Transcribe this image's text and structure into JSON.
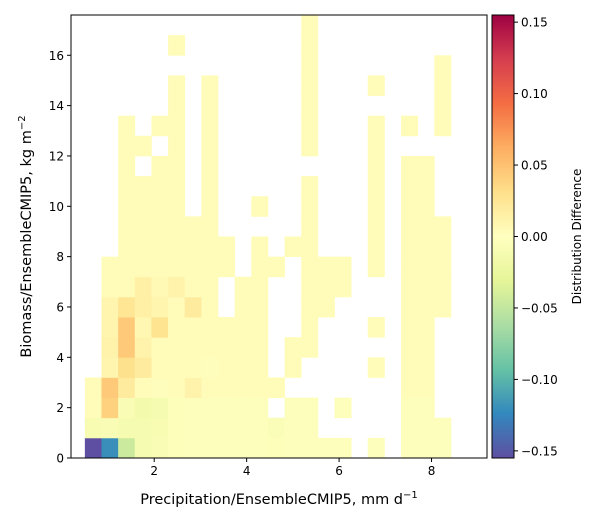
{
  "chart_data": {
    "type": "heatmap",
    "title": "",
    "xlabel": "Precipitation/EnsembleCMIP5,  mm d",
    "xlabel_sup": "−1",
    "ylabel": "Biomass/EnsembleCMIP5,  kg m",
    "ylabel_sup": "−2",
    "xlim": [
      0.2,
      9.2
    ],
    "ylim": [
      0,
      17.6
    ],
    "x_ticks": [
      2,
      4,
      6,
      8
    ],
    "y_ticks": [
      0,
      2,
      4,
      6,
      8,
      10,
      12,
      14,
      16
    ],
    "x_bin_width": 0.36,
    "y_bin_width": 0.8,
    "grid": false,
    "colorbar": {
      "label": "Distribution Difference",
      "range": [
        -0.155,
        0.155
      ],
      "ticks": [
        -0.15,
        -0.1,
        -0.05,
        0.0,
        0.05,
        0.1,
        0.15
      ],
      "tick_labels": [
        "−0.15",
        "−0.10",
        "−0.05",
        "0.00",
        "0.05",
        "0.10",
        "0.15"
      ],
      "colormap": "Spectral_r"
    },
    "cells_note": "each cell: [x_bin_start, y_bin_start, value]",
    "cells": [
      [
        0.5,
        0.0,
        -0.155
      ],
      [
        0.86,
        0.0,
        -0.12
      ],
      [
        1.22,
        0.0,
        -0.045
      ],
      [
        1.58,
        0.0,
        -0.012
      ],
      [
        1.94,
        0.0,
        -0.008
      ],
      [
        2.3,
        0.0,
        -0.004
      ],
      [
        2.66,
        0.0,
        -0.003
      ],
      [
        3.02,
        0.0,
        -0.003
      ],
      [
        3.38,
        0.0,
        -0.003
      ],
      [
        3.74,
        0.0,
        -0.003
      ],
      [
        4.1,
        0.0,
        -0.003
      ],
      [
        4.46,
        0.0,
        -0.004
      ],
      [
        4.82,
        0.0,
        -0.003
      ],
      [
        5.18,
        0.0,
        -0.003
      ],
      [
        5.54,
        0.0,
        -0.003
      ],
      [
        5.9,
        0.0,
        -0.003
      ],
      [
        6.62,
        0.0,
        -0.003
      ],
      [
        7.34,
        0.0,
        -0.003
      ],
      [
        7.7,
        0.0,
        -0.003
      ],
      [
        8.06,
        0.0,
        -0.003
      ],
      [
        0.5,
        0.8,
        -0.01
      ],
      [
        0.86,
        0.8,
        -0.008
      ],
      [
        1.22,
        0.8,
        -0.012
      ],
      [
        1.58,
        0.8,
        -0.012
      ],
      [
        1.94,
        0.8,
        -0.01
      ],
      [
        2.3,
        0.8,
        -0.004
      ],
      [
        2.66,
        0.8,
        -0.003
      ],
      [
        3.02,
        0.8,
        -0.003
      ],
      [
        3.38,
        0.8,
        -0.003
      ],
      [
        3.74,
        0.8,
        -0.003
      ],
      [
        4.1,
        0.8,
        -0.003
      ],
      [
        4.46,
        0.8,
        -0.006
      ],
      [
        4.82,
        0.8,
        -0.003
      ],
      [
        5.18,
        0.8,
        -0.003
      ],
      [
        7.34,
        0.8,
        -0.003
      ],
      [
        7.7,
        0.8,
        -0.003
      ],
      [
        8.06,
        0.8,
        -0.003
      ],
      [
        0.5,
        1.6,
        0.004
      ],
      [
        0.86,
        1.6,
        0.04
      ],
      [
        1.22,
        1.6,
        -0.008
      ],
      [
        1.58,
        1.6,
        -0.015
      ],
      [
        1.94,
        1.6,
        -0.012
      ],
      [
        2.3,
        1.6,
        -0.004
      ],
      [
        2.66,
        1.6,
        -0.003
      ],
      [
        3.02,
        1.6,
        -0.003
      ],
      [
        3.38,
        1.6,
        -0.003
      ],
      [
        3.74,
        1.6,
        -0.003
      ],
      [
        4.1,
        1.6,
        -0.003
      ],
      [
        4.82,
        1.6,
        -0.003
      ],
      [
        5.18,
        1.6,
        -0.003
      ],
      [
        5.9,
        1.6,
        -0.003
      ],
      [
        7.34,
        1.6,
        -0.003
      ],
      [
        7.7,
        1.6,
        -0.003
      ],
      [
        0.5,
        2.4,
        0.004
      ],
      [
        0.86,
        2.4,
        0.045
      ],
      [
        1.22,
        2.4,
        0.02
      ],
      [
        1.58,
        2.4,
        0.003
      ],
      [
        1.94,
        2.4,
        0.002
      ],
      [
        2.3,
        2.4,
        0.003
      ],
      [
        2.66,
        2.4,
        0.012
      ],
      [
        3.02,
        2.4,
        0.003
      ],
      [
        3.38,
        2.4,
        0.003
      ],
      [
        3.74,
        2.4,
        0.003
      ],
      [
        4.1,
        2.4,
        0.003
      ],
      [
        4.46,
        2.4,
        0.003
      ],
      [
        7.34,
        2.4,
        0.003
      ],
      [
        7.7,
        2.4,
        0.003
      ],
      [
        0.86,
        3.2,
        0.01
      ],
      [
        1.22,
        3.2,
        0.03
      ],
      [
        1.58,
        3.2,
        0.02
      ],
      [
        1.94,
        3.2,
        0.003
      ],
      [
        2.3,
        3.2,
        0.003
      ],
      [
        2.66,
        3.2,
        0.003
      ],
      [
        3.02,
        3.2,
        0.002
      ],
      [
        3.38,
        3.2,
        0.003
      ],
      [
        3.74,
        3.2,
        0.003
      ],
      [
        4.1,
        3.2,
        0.003
      ],
      [
        4.82,
        3.2,
        0.003
      ],
      [
        6.62,
        3.2,
        0.003
      ],
      [
        7.34,
        3.2,
        0.003
      ],
      [
        7.7,
        3.2,
        0.003
      ],
      [
        0.86,
        4.0,
        0.012
      ],
      [
        1.22,
        4.0,
        0.045
      ],
      [
        1.58,
        4.0,
        0.012
      ],
      [
        1.94,
        4.0,
        0.003
      ],
      [
        2.3,
        4.0,
        0.003
      ],
      [
        2.66,
        4.0,
        0.003
      ],
      [
        3.02,
        4.0,
        0.003
      ],
      [
        3.38,
        4.0,
        0.003
      ],
      [
        3.74,
        4.0,
        0.003
      ],
      [
        4.1,
        4.0,
        0.003
      ],
      [
        4.82,
        4.0,
        0.003
      ],
      [
        5.18,
        4.0,
        0.003
      ],
      [
        7.34,
        4.0,
        0.003
      ],
      [
        7.7,
        4.0,
        0.003
      ],
      [
        0.86,
        4.8,
        0.01
      ],
      [
        1.22,
        4.8,
        0.045
      ],
      [
        1.58,
        4.8,
        0.008
      ],
      [
        1.94,
        4.8,
        0.028
      ],
      [
        2.3,
        4.8,
        0.003
      ],
      [
        2.66,
        4.8,
        0.003
      ],
      [
        3.02,
        4.8,
        0.003
      ],
      [
        3.38,
        4.8,
        0.003
      ],
      [
        3.74,
        4.8,
        0.003
      ],
      [
        4.1,
        4.8,
        0.003
      ],
      [
        5.18,
        4.8,
        0.003
      ],
      [
        6.62,
        4.8,
        0.003
      ],
      [
        7.34,
        4.8,
        0.003
      ],
      [
        7.7,
        4.8,
        0.003
      ],
      [
        0.86,
        5.6,
        0.01
      ],
      [
        1.22,
        5.6,
        0.025
      ],
      [
        1.58,
        5.6,
        0.015
      ],
      [
        1.94,
        5.6,
        0.01
      ],
      [
        2.3,
        5.6,
        0.004
      ],
      [
        2.66,
        5.6,
        0.02
      ],
      [
        3.02,
        5.6,
        0.003
      ],
      [
        3.74,
        5.6,
        0.003
      ],
      [
        4.1,
        5.6,
        0.003
      ],
      [
        5.18,
        5.6,
        0.003
      ],
      [
        5.54,
        5.6,
        0.003
      ],
      [
        7.34,
        5.6,
        0.003
      ],
      [
        7.7,
        5.6,
        0.003
      ],
      [
        8.06,
        5.6,
        0.003
      ],
      [
        0.86,
        6.4,
        0.003
      ],
      [
        1.22,
        6.4,
        0.004
      ],
      [
        1.58,
        6.4,
        0.015
      ],
      [
        1.94,
        6.4,
        0.006
      ],
      [
        2.3,
        6.4,
        0.012
      ],
      [
        2.66,
        6.4,
        0.004
      ],
      [
        3.02,
        6.4,
        0.003
      ],
      [
        3.74,
        6.4,
        0.003
      ],
      [
        4.1,
        6.4,
        0.003
      ],
      [
        5.18,
        6.4,
        0.003
      ],
      [
        5.54,
        6.4,
        0.003
      ],
      [
        5.9,
        6.4,
        0.003
      ],
      [
        7.34,
        6.4,
        0.003
      ],
      [
        7.7,
        6.4,
        0.003
      ],
      [
        8.06,
        6.4,
        0.003
      ],
      [
        0.86,
        7.2,
        0.003
      ],
      [
        1.22,
        7.2,
        0.003
      ],
      [
        1.58,
        7.2,
        0.003
      ],
      [
        1.94,
        7.2,
        0.003
      ],
      [
        2.3,
        7.2,
        0.003
      ],
      [
        2.66,
        7.2,
        0.003
      ],
      [
        3.02,
        7.2,
        0.003
      ],
      [
        3.38,
        7.2,
        0.003
      ],
      [
        4.1,
        7.2,
        0.003
      ],
      [
        4.46,
        7.2,
        0.003
      ],
      [
        5.18,
        7.2,
        0.003
      ],
      [
        5.54,
        7.2,
        0.003
      ],
      [
        5.9,
        7.2,
        0.003
      ],
      [
        6.62,
        7.2,
        0.003
      ],
      [
        7.34,
        7.2,
        0.003
      ],
      [
        7.7,
        7.2,
        0.003
      ],
      [
        8.06,
        7.2,
        0.003
      ],
      [
        1.22,
        8.0,
        0.003
      ],
      [
        1.58,
        8.0,
        0.003
      ],
      [
        1.94,
        8.0,
        0.003
      ],
      [
        2.3,
        8.0,
        0.003
      ],
      [
        2.66,
        8.0,
        0.003
      ],
      [
        3.02,
        8.0,
        0.003
      ],
      [
        3.38,
        8.0,
        0.003
      ],
      [
        4.1,
        8.0,
        0.003
      ],
      [
        4.82,
        8.0,
        0.003
      ],
      [
        5.18,
        8.0,
        0.003
      ],
      [
        6.62,
        8.0,
        0.003
      ],
      [
        7.34,
        8.0,
        0.003
      ],
      [
        7.7,
        8.0,
        0.003
      ],
      [
        8.06,
        8.0,
        0.003
      ],
      [
        1.22,
        8.8,
        0.003
      ],
      [
        1.58,
        8.8,
        0.003
      ],
      [
        1.94,
        8.8,
        0.003
      ],
      [
        2.3,
        8.8,
        0.003
      ],
      [
        2.66,
        8.8,
        0.003
      ],
      [
        3.02,
        8.8,
        0.003
      ],
      [
        5.18,
        8.8,
        0.003
      ],
      [
        6.62,
        8.8,
        0.003
      ],
      [
        7.34,
        8.8,
        0.003
      ],
      [
        7.7,
        8.8,
        0.003
      ],
      [
        8.06,
        8.8,
        0.003
      ],
      [
        1.22,
        9.6,
        0.003
      ],
      [
        1.58,
        9.6,
        0.003
      ],
      [
        1.94,
        9.6,
        0.003
      ],
      [
        2.3,
        9.6,
        0.003
      ],
      [
        3.02,
        9.6,
        0.003
      ],
      [
        4.1,
        9.6,
        0.003
      ],
      [
        5.18,
        9.6,
        0.003
      ],
      [
        6.62,
        9.6,
        0.003
      ],
      [
        7.34,
        9.6,
        0.003
      ],
      [
        7.7,
        9.6,
        0.003
      ],
      [
        1.22,
        10.4,
        0.003
      ],
      [
        1.58,
        10.4,
        0.003
      ],
      [
        1.94,
        10.4,
        0.003
      ],
      [
        2.3,
        10.4,
        0.003
      ],
      [
        3.02,
        10.4,
        0.003
      ],
      [
        5.18,
        10.4,
        0.003
      ],
      [
        6.62,
        10.4,
        0.003
      ],
      [
        7.34,
        10.4,
        0.003
      ],
      [
        7.7,
        10.4,
        0.003
      ],
      [
        1.22,
        11.2,
        0.003
      ],
      [
        1.94,
        11.2,
        0.003
      ],
      [
        2.3,
        11.2,
        0.003
      ],
      [
        3.02,
        11.2,
        0.003
      ],
      [
        6.62,
        11.2,
        0.003
      ],
      [
        7.34,
        11.2,
        0.003
      ],
      [
        7.7,
        11.2,
        0.003
      ],
      [
        1.22,
        12.0,
        0.003
      ],
      [
        1.58,
        12.0,
        0.003
      ],
      [
        2.3,
        12.0,
        0.003
      ],
      [
        3.02,
        12.0,
        0.003
      ],
      [
        5.18,
        12.0,
        0.003
      ],
      [
        6.62,
        12.0,
        0.003
      ],
      [
        1.22,
        12.8,
        0.003
      ],
      [
        1.94,
        12.8,
        0.003
      ],
      [
        2.3,
        12.8,
        0.003
      ],
      [
        3.02,
        12.8,
        0.003
      ],
      [
        5.18,
        12.8,
        0.003
      ],
      [
        6.62,
        12.8,
        0.003
      ],
      [
        7.34,
        12.8,
        0.003
      ],
      [
        8.06,
        12.8,
        0.003
      ],
      [
        2.3,
        13.6,
        0.003
      ],
      [
        3.02,
        13.6,
        0.003
      ],
      [
        5.18,
        13.6,
        0.003
      ],
      [
        8.06,
        13.6,
        0.003
      ],
      [
        2.3,
        14.4,
        0.003
      ],
      [
        3.02,
        14.4,
        0.003
      ],
      [
        5.18,
        14.4,
        0.003
      ],
      [
        6.62,
        14.4,
        0.003
      ],
      [
        8.06,
        14.4,
        0.003
      ],
      [
        5.18,
        15.2,
        0.003
      ],
      [
        8.06,
        15.2,
        0.003
      ],
      [
        2.3,
        16.0,
        0.003
      ],
      [
        5.18,
        16.0,
        0.003
      ],
      [
        5.18,
        16.8,
        0.003
      ]
    ]
  }
}
